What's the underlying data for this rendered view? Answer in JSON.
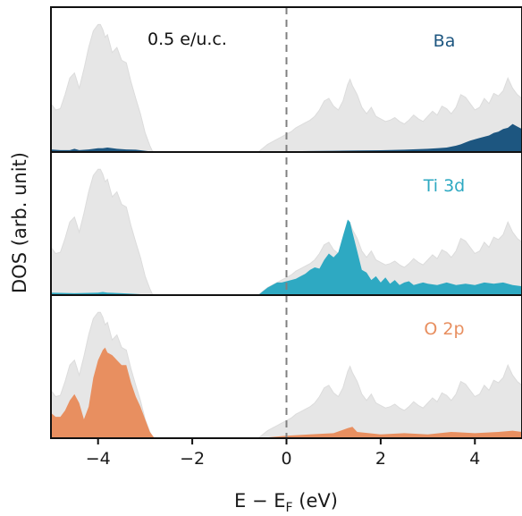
{
  "chart_data": {
    "type": "area",
    "xlabel_main": "E − E",
    "xlabel_sub": "F",
    "xlabel_tail": " (eV)",
    "ylabel": "DOS (arb. unit)",
    "xlim": [
      -5,
      5
    ],
    "x_ticks": [
      -4,
      -2,
      0,
      2,
      4
    ],
    "x_tick_labels": [
      "−4",
      "−2",
      "0",
      "2",
      "4"
    ],
    "fermi_line_x": 0,
    "annotation": "0.5 e/u.c.",
    "total_color": "#e6e6e6",
    "total_dos": {
      "x": [
        -5.0,
        -4.9,
        -4.8,
        -4.7,
        -4.6,
        -4.5,
        -4.45,
        -4.4,
        -4.3,
        -4.2,
        -4.1,
        -4.0,
        -3.95,
        -3.9,
        -3.85,
        -3.8,
        -3.7,
        -3.6,
        -3.5,
        -3.4,
        -3.3,
        -3.2,
        -3.1,
        -3.0,
        -2.9,
        -2.85,
        -2.8,
        -0.6,
        -0.5,
        -0.4,
        -0.3,
        -0.2,
        -0.1,
        0.0,
        0.1,
        0.2,
        0.3,
        0.4,
        0.5,
        0.6,
        0.7,
        0.8,
        0.9,
        1.0,
        1.1,
        1.2,
        1.3,
        1.35,
        1.4,
        1.5,
        1.6,
        1.7,
        1.8,
        1.9,
        2.0,
        2.1,
        2.2,
        2.3,
        2.4,
        2.5,
        2.6,
        2.7,
        2.8,
        2.9,
        3.0,
        3.1,
        3.2,
        3.3,
        3.4,
        3.5,
        3.6,
        3.7,
        3.8,
        3.9,
        4.0,
        4.1,
        4.2,
        4.3,
        4.4,
        4.5,
        4.6,
        4.7,
        4.8,
        4.9,
        5.0
      ],
      "y": [
        0.38,
        0.33,
        0.34,
        0.45,
        0.58,
        0.62,
        0.56,
        0.5,
        0.65,
        0.82,
        0.95,
        1.0,
        1.0,
        0.96,
        0.9,
        0.92,
        0.78,
        0.82,
        0.72,
        0.7,
        0.55,
        0.42,
        0.3,
        0.15,
        0.05,
        0.01,
        0.0,
        0.0,
        0.03,
        0.06,
        0.08,
        0.1,
        0.12,
        0.14,
        0.16,
        0.19,
        0.21,
        0.23,
        0.25,
        0.28,
        0.33,
        0.4,
        0.42,
        0.36,
        0.33,
        0.4,
        0.53,
        0.57,
        0.52,
        0.45,
        0.35,
        0.3,
        0.35,
        0.28,
        0.26,
        0.24,
        0.25,
        0.27,
        0.24,
        0.22,
        0.25,
        0.29,
        0.26,
        0.24,
        0.28,
        0.32,
        0.29,
        0.36,
        0.34,
        0.3,
        0.35,
        0.45,
        0.43,
        0.38,
        0.33,
        0.35,
        0.42,
        0.38,
        0.46,
        0.44,
        0.48,
        0.58,
        0.5,
        0.45,
        0.42
      ]
    },
    "panels": [
      {
        "label": "Ba",
        "color": "#1d5680",
        "pdos": {
          "x": [
            -5.0,
            -4.8,
            -4.6,
            -4.5,
            -4.4,
            -4.2,
            -4.0,
            -3.9,
            -3.8,
            -3.6,
            -3.4,
            -3.2,
            -3.0,
            -2.9,
            -2.8,
            -0.6,
            0.0,
            0.5,
            1.0,
            1.5,
            2.0,
            2.5,
            3.0,
            3.2,
            3.4,
            3.6,
            3.7,
            3.8,
            3.9,
            4.0,
            4.1,
            4.2,
            4.3,
            4.4,
            4.5,
            4.6,
            4.7,
            4.8,
            4.9,
            5.0
          ],
          "y": [
            0.02,
            0.015,
            0.015,
            0.025,
            0.015,
            0.02,
            0.03,
            0.03,
            0.035,
            0.025,
            0.02,
            0.018,
            0.01,
            0.005,
            0.0,
            0.0,
            0.005,
            0.008,
            0.01,
            0.012,
            0.014,
            0.018,
            0.025,
            0.03,
            0.035,
            0.05,
            0.06,
            0.075,
            0.09,
            0.1,
            0.11,
            0.12,
            0.13,
            0.15,
            0.16,
            0.18,
            0.19,
            0.22,
            0.2,
            0.18
          ]
        }
      },
      {
        "label": "Ti 3d",
        "color": "#2ea9c2",
        "pdos": {
          "x": [
            -5.0,
            -4.5,
            -4.0,
            -3.9,
            -3.8,
            -3.5,
            -3.0,
            -2.8,
            -0.6,
            -0.5,
            -0.4,
            -0.3,
            -0.2,
            -0.1,
            0.0,
            0.1,
            0.2,
            0.3,
            0.4,
            0.5,
            0.6,
            0.7,
            0.8,
            0.9,
            1.0,
            1.1,
            1.2,
            1.3,
            1.35,
            1.4,
            1.5,
            1.6,
            1.7,
            1.8,
            1.9,
            2.0,
            2.1,
            2.2,
            2.3,
            2.4,
            2.5,
            2.6,
            2.7,
            2.8,
            2.9,
            3.0,
            3.2,
            3.4,
            3.6,
            3.8,
            4.0,
            4.2,
            4.4,
            4.6,
            4.8,
            5.0
          ],
          "y": [
            0.02,
            0.015,
            0.02,
            0.025,
            0.02,
            0.015,
            0.005,
            0.0,
            0.0,
            0.03,
            0.06,
            0.08,
            0.1,
            0.1,
            0.11,
            0.12,
            0.13,
            0.15,
            0.17,
            0.2,
            0.22,
            0.21,
            0.28,
            0.33,
            0.3,
            0.34,
            0.47,
            0.6,
            0.58,
            0.5,
            0.35,
            0.2,
            0.18,
            0.12,
            0.15,
            0.1,
            0.14,
            0.09,
            0.12,
            0.08,
            0.1,
            0.11,
            0.08,
            0.09,
            0.1,
            0.09,
            0.08,
            0.1,
            0.08,
            0.09,
            0.08,
            0.1,
            0.09,
            0.1,
            0.08,
            0.07
          ]
        }
      },
      {
        "label": "O 2p",
        "color": "#e88f60",
        "pdos": {
          "x": [
            -5.0,
            -4.9,
            -4.8,
            -4.7,
            -4.6,
            -4.5,
            -4.4,
            -4.3,
            -4.2,
            -4.1,
            -4.0,
            -3.9,
            -3.85,
            -3.8,
            -3.7,
            -3.6,
            -3.5,
            -3.4,
            -3.3,
            -3.2,
            -3.1,
            -3.0,
            -2.9,
            -2.8,
            -0.6,
            -0.3,
            0.0,
            0.5,
            1.0,
            1.3,
            1.4,
            1.5,
            2.0,
            2.5,
            3.0,
            3.5,
            4.0,
            4.5,
            4.8,
            5.0
          ],
          "y": [
            0.2,
            0.17,
            0.17,
            0.22,
            0.3,
            0.35,
            0.28,
            0.15,
            0.25,
            0.48,
            0.62,
            0.7,
            0.72,
            0.68,
            0.66,
            0.62,
            0.58,
            0.58,
            0.44,
            0.33,
            0.25,
            0.15,
            0.05,
            0.0,
            0.0,
            0.01,
            0.02,
            0.03,
            0.04,
            0.08,
            0.09,
            0.05,
            0.03,
            0.04,
            0.03,
            0.05,
            0.04,
            0.05,
            0.06,
            0.05
          ]
        }
      }
    ]
  }
}
